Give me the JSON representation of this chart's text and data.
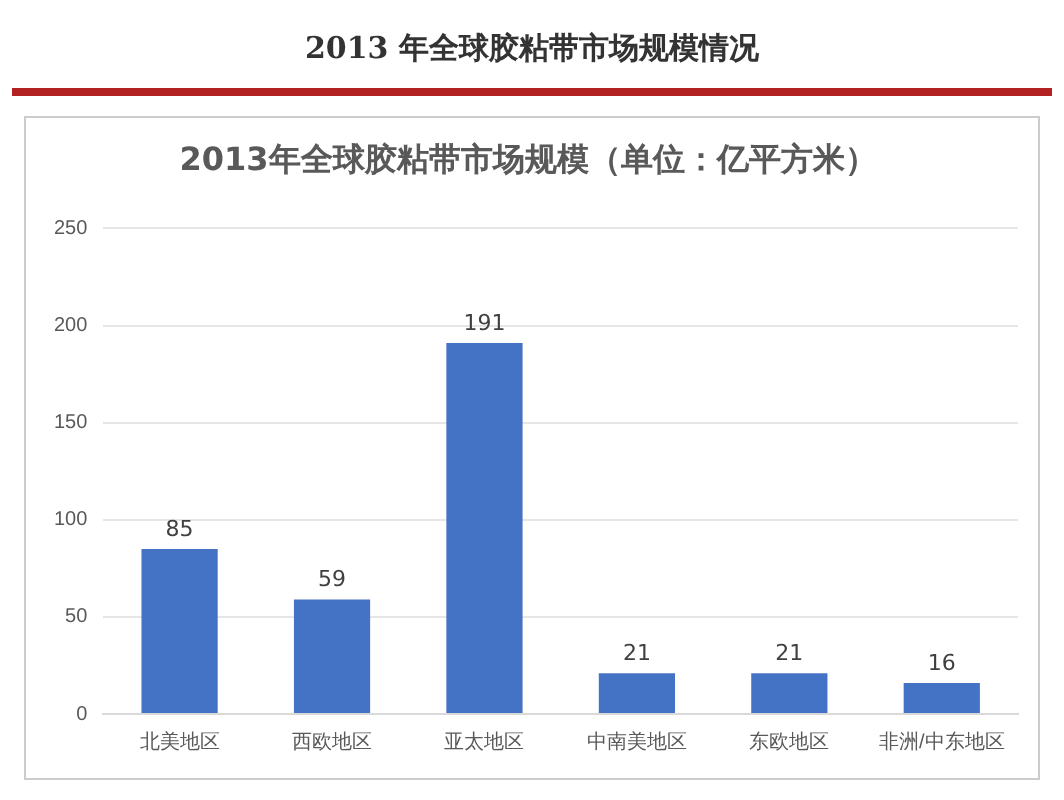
{
  "chart_data": {
    "type": "bar",
    "title": "2013 年全球胶粘带市场规模情况",
    "subtitle": "2013年全球胶粘带市场规模（单位：亿平方米）",
    "categories": [
      "北美地区",
      "西欧地区",
      "亚太地区",
      "中南美地区",
      "东欧地区",
      "非洲/中东地区"
    ],
    "values": [
      85,
      59,
      191,
      21,
      21,
      16
    ],
    "color": "#4472c4",
    "ylim": [
      0,
      250
    ],
    "yticks": [
      0,
      50,
      100,
      150,
      200,
      250
    ],
    "grid": "y",
    "data_labels": true,
    "legend": false
  }
}
